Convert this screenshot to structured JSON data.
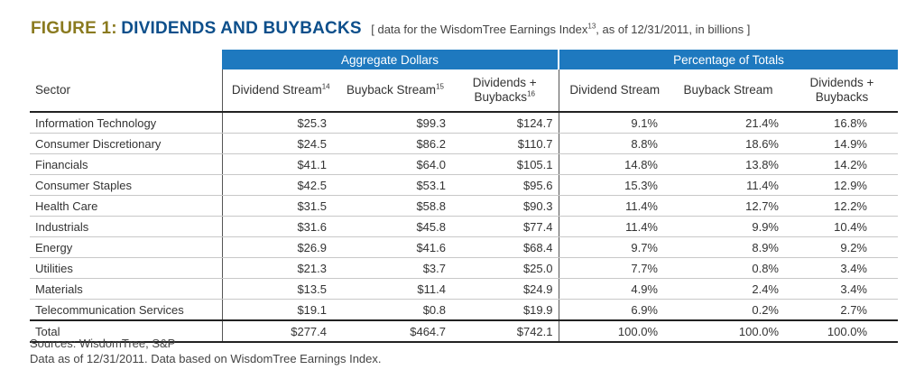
{
  "title": {
    "label": "FIGURE 1:",
    "name": "DIVIDENDS AND BUYBACKS",
    "sub_pre": "[ data for the WisdomTree Earnings Index",
    "sub_sup": "13",
    "sub_post": ", as of 12/31/2011, in billions ]"
  },
  "groups": {
    "aggregate": "Aggregate Dollars",
    "percentage": "Percentage of Totals"
  },
  "headers": {
    "sector": "Sector",
    "dividend_stream": "Dividend Stream",
    "dividend_stream_sup": "14",
    "buyback_stream": "Buyback Stream",
    "buyback_stream_sup": "15",
    "div_buy_line1": "Dividends +",
    "div_buy_line2": "Buybacks",
    "div_buy_sup": "16",
    "pct_dividend": "Dividend Stream",
    "pct_buyback": "Buyback Stream",
    "pct_div_buy_line1": "Dividends +",
    "pct_div_buy_line2": "Buybacks"
  },
  "rows": [
    [
      "Information Technology",
      "$25.3",
      "$99.3",
      "$124.7",
      "9.1%",
      "21.4%",
      "16.8%"
    ],
    [
      "Consumer Discretionary",
      "$24.5",
      "$86.2",
      "$110.7",
      "8.8%",
      "18.6%",
      "14.9%"
    ],
    [
      "Financials",
      "$41.1",
      "$64.0",
      "$105.1",
      "14.8%",
      "13.8%",
      "14.2%"
    ],
    [
      "Consumer Staples",
      "$42.5",
      "$53.1",
      "$95.6",
      "15.3%",
      "11.4%",
      "12.9%"
    ],
    [
      "Health Care",
      "$31.5",
      "$58.8",
      "$90.3",
      "11.4%",
      "12.7%",
      "12.2%"
    ],
    [
      "Industrials",
      "$31.6",
      "$45.8",
      "$77.4",
      "11.4%",
      "9.9%",
      "10.4%"
    ],
    [
      "Energy",
      "$26.9",
      "$41.6",
      "$68.4",
      "9.7%",
      "8.9%",
      "9.2%"
    ],
    [
      "Utilities",
      "$21.3",
      "$3.7",
      "$25.0",
      "7.7%",
      "0.8%",
      "3.4%"
    ],
    [
      "Materials",
      "$13.5",
      "$11.4",
      "$24.9",
      "4.9%",
      "2.4%",
      "3.4%"
    ],
    [
      "Telecommunication Services",
      "$19.1",
      "$0.8",
      "$19.9",
      "6.9%",
      "0.2%",
      "2.7%"
    ]
  ],
  "total": [
    "Total",
    "$277.4",
    "$464.7",
    "$742.1",
    "100.0%",
    "100.0%",
    "100.0%"
  ],
  "sources": {
    "line1": "Sources: WisdomTree, S&P",
    "line2": "Data as of 12/31/2011. Data based on WisdomTree Earnings Index."
  },
  "colors": {
    "header_band": "#1e79bf",
    "title_label": "#8a7a1f",
    "title_name": "#0d4f8b"
  }
}
